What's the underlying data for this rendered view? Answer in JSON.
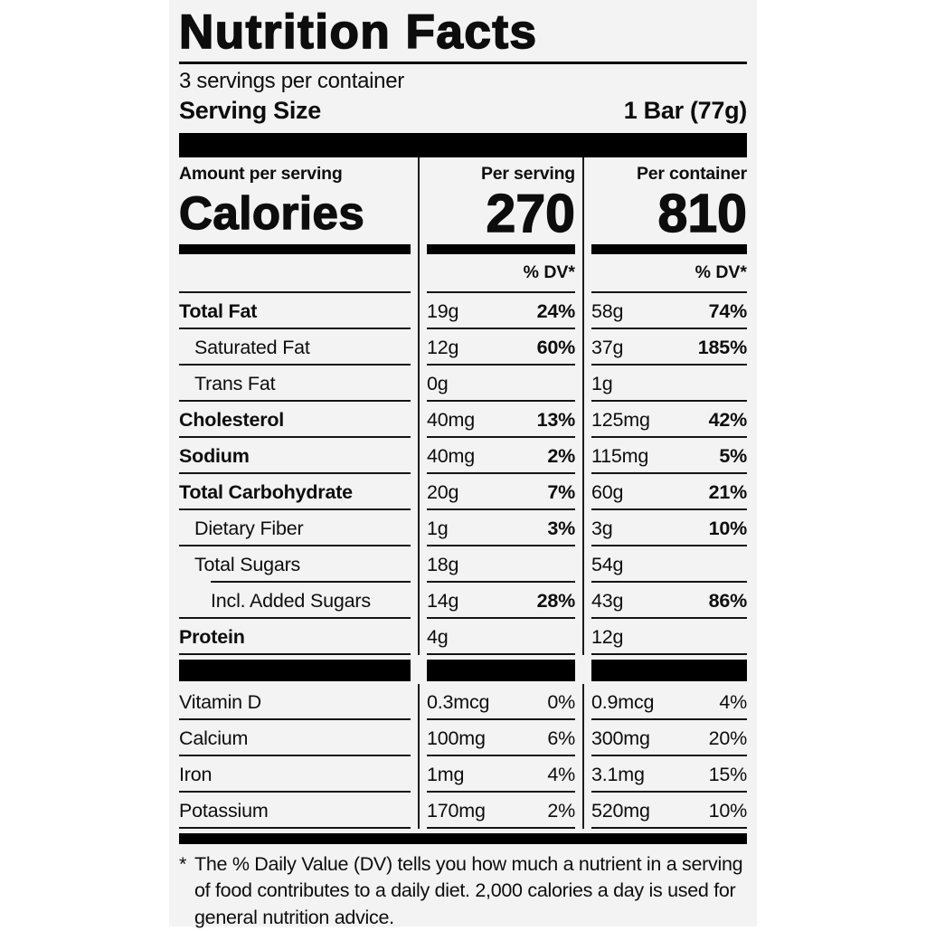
{
  "label": {
    "title": "Nutrition Facts",
    "servings_per_container": "3 servings per container",
    "serving_size_label": "Serving Size",
    "serving_size_value": "1 Bar (77g)",
    "calories_header": {
      "amount_label": "Amount per serving",
      "calories_label": "Calories",
      "per_serving_label": "Per serving",
      "per_serving_calories": "270",
      "per_container_label": "Per container",
      "per_container_calories": "810",
      "dv_header": "% DV*"
    },
    "nutrients": [
      {
        "name": "Total Fat",
        "per_serving": "19g",
        "per_serving_dv": "24%",
        "per_container": "58g",
        "per_container_dv": "74%"
      },
      {
        "name": "Saturated Fat",
        "per_serving": "12g",
        "per_serving_dv": "60%",
        "per_container": "37g",
        "per_container_dv": "185%"
      },
      {
        "name": "Trans Fat",
        "per_serving": "0g",
        "per_serving_dv": "",
        "per_container": "1g",
        "per_container_dv": ""
      },
      {
        "name": "Cholesterol",
        "per_serving": "40mg",
        "per_serving_dv": "13%",
        "per_container": "125mg",
        "per_container_dv": "42%"
      },
      {
        "name": "Sodium",
        "per_serving": "40mg",
        "per_serving_dv": "2%",
        "per_container": "115mg",
        "per_container_dv": "5%"
      },
      {
        "name": "Total Carbohydrate",
        "per_serving": "20g",
        "per_serving_dv": "7%",
        "per_container": "60g",
        "per_container_dv": "21%"
      },
      {
        "name": "Dietary Fiber",
        "per_serving": "1g",
        "per_serving_dv": "3%",
        "per_container": "3g",
        "per_container_dv": "10%"
      },
      {
        "name": "Total Sugars",
        "per_serving": "18g",
        "per_serving_dv": "",
        "per_container": "54g",
        "per_container_dv": ""
      },
      {
        "name": "Incl. Added Sugars",
        "per_serving": "14g",
        "per_serving_dv": "28%",
        "per_container": "43g",
        "per_container_dv": "86%"
      },
      {
        "name": "Protein",
        "per_serving": "4g",
        "per_serving_dv": "",
        "per_container": "12g",
        "per_container_dv": ""
      }
    ],
    "vitamins": [
      {
        "name": "Vitamin D",
        "per_serving": "0.3mcg",
        "per_serving_dv": "0%",
        "per_container": "0.9mcg",
        "per_container_dv": "4%"
      },
      {
        "name": "Calcium",
        "per_serving": "100mg",
        "per_serving_dv": "6%",
        "per_container": "300mg",
        "per_container_dv": "20%"
      },
      {
        "name": "Iron",
        "per_serving": "1mg",
        "per_serving_dv": "4%",
        "per_container": "3.1mg",
        "per_container_dv": "15%"
      },
      {
        "name": "Potassium",
        "per_serving": "170mg",
        "per_serving_dv": "2%",
        "per_container": "520mg",
        "per_container_dv": "10%"
      }
    ],
    "footnote_marker": "*",
    "footnote": "The % Daily Value (DV) tells you how much a nutrient in a serving of food contributes to a daily diet. 2,000 calories a day is used for general nutrition advice.",
    "colors": {
      "panel_background": "#f3f3f3",
      "ink": "#0d0d0d"
    }
  }
}
